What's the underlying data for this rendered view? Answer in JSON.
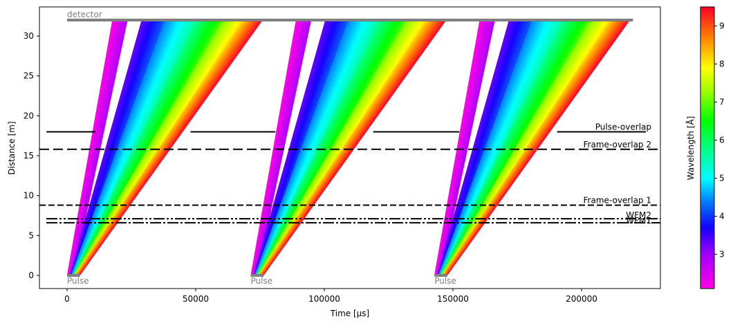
{
  "chart_data": {
    "type": "line",
    "title": "",
    "xlabel": "Time [µs]",
    "ylabel": "Distance [m]",
    "xlim": [
      -10750,
      230650
    ],
    "ylim": [
      -1.65,
      33.65
    ],
    "xticks": [
      0,
      50000,
      100000,
      150000,
      200000
    ],
    "xtick_labels": [
      "0",
      "50000",
      "100000",
      "150000",
      "200000"
    ],
    "yticks": [
      0,
      5,
      10,
      15,
      20,
      25,
      30
    ],
    "ytick_labels": [
      "0",
      "5",
      "10",
      "15",
      "20",
      "25",
      "30"
    ],
    "grid": false,
    "colorbar": {
      "label": "Wavelength [Å]",
      "range": [
        2.1,
        9.5
      ],
      "ticks": [
        3,
        4,
        5,
        6,
        7,
        8,
        9
      ],
      "tick_labels": [
        "3",
        "4",
        "5",
        "6",
        "7",
        "8",
        "9"
      ],
      "colormap": "gist_rainbow_r",
      "stops": [
        {
          "value": 2.1,
          "color": "#ff00e6"
        },
        {
          "value": 3.0,
          "color": "#a000ff"
        },
        {
          "value": 3.7,
          "color": "#1400ff"
        },
        {
          "value": 4.4,
          "color": "#0080ff"
        },
        {
          "value": 5.0,
          "color": "#00ffff"
        },
        {
          "value": 5.8,
          "color": "#00ff80"
        },
        {
          "value": 6.5,
          "color": "#00ff00"
        },
        {
          "value": 7.3,
          "color": "#a0ff00"
        },
        {
          "value": 7.9,
          "color": "#ffff00"
        },
        {
          "value": 8.6,
          "color": "#ff9000"
        },
        {
          "value": 9.5,
          "color": "#ff0028"
        }
      ]
    },
    "detector": {
      "label": "detector",
      "distance": 32,
      "t_start": 0,
      "t_end": 220000,
      "color": "#808080"
    },
    "pulses": [
      {
        "label": "Pulse",
        "t_start": 0,
        "t_end": 5000,
        "distance": 0
      },
      {
        "label": "Pulse",
        "t_start": 71400,
        "t_end": 76400,
        "distance": 0
      },
      {
        "label": "Pulse",
        "t_start": 142800,
        "t_end": 147800,
        "distance": 0
      }
    ],
    "frames": [
      {
        "bands": [
          {
            "wl_lo": 2.1,
            "wl_hi": 2.9,
            "t0_lo": 0,
            "t0_hi": 2500,
            "t_det_lo": 17600,
            "t_det_hi": 23500
          },
          {
            "wl_lo": 3.3,
            "wl_hi": 4.3,
            "t0_lo": 1000,
            "t0_hi": 3500,
            "t_det_lo": 29000,
            "t_det_hi": 39000
          },
          {
            "wl_lo": 4.4,
            "wl_hi": 5.6,
            "t0_lo": 1500,
            "t0_hi": 4500,
            "t_det_lo": 38000,
            "t_det_hi": 50500
          },
          {
            "wl_lo": 5.7,
            "wl_hi": 7.0,
            "t0_lo": 2000,
            "t0_hi": 5000,
            "t_det_lo": 50000,
            "t_det_hi": 62000
          },
          {
            "wl_lo": 7.1,
            "wl_hi": 8.1,
            "t0_lo": 2500,
            "t0_hi": 5000,
            "t_det_lo": 60500,
            "t_det_hi": 68500
          },
          {
            "wl_lo": 8.2,
            "wl_hi": 9.5,
            "t0_lo": 3000,
            "t0_hi": 5000,
            "t_det_lo": 68500,
            "t_det_hi": 76000
          }
        ],
        "t_offset": 0
      },
      {
        "bands": "same as frame 1",
        "t_offset": 71400
      },
      {
        "bands": "same as frame 1",
        "t_offset": 142800
      }
    ],
    "choppers": [
      {
        "label": "Pulse-overlap",
        "distance": 18.0,
        "linestyle": "solid",
        "open_windows": [
          [
            12000,
            47000
          ],
          [
            81500,
            118500
          ],
          [
            153000,
            190000
          ]
        ],
        "closed_segments": [
          [
            -8000,
            11000
          ],
          [
            48000,
            81000
          ],
          [
            119000,
            152500
          ],
          [
            190500,
            225000
          ]
        ]
      },
      {
        "label": "Frame-overlap 2",
        "distance": 15.8,
        "linestyle": "dashed"
      },
      {
        "label": "Frame-overlap 1",
        "distance": 8.8,
        "linestyle": "dashed"
      },
      {
        "label": "WFM2",
        "distance": 7.1,
        "linestyle": "dashdot"
      },
      {
        "label": "WFM1",
        "distance": 6.6,
        "linestyle": "dashdot"
      }
    ]
  },
  "labels": {
    "xlabel": "Time [µs]",
    "ylabel": "Distance [m]",
    "colorbar_label": "Wavelength [Å]",
    "detector": "detector"
  }
}
